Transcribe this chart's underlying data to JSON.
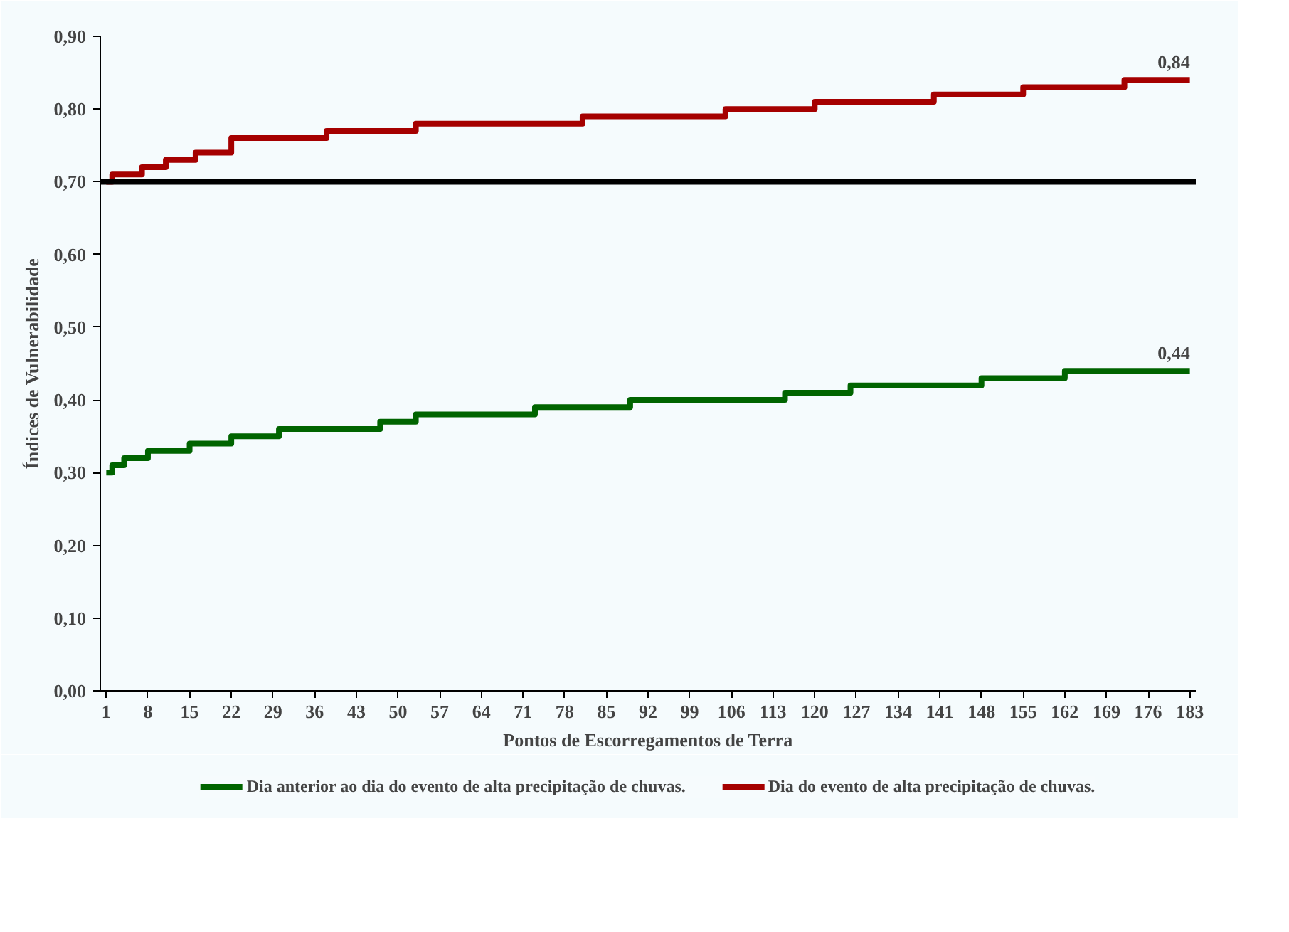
{
  "chart_data": {
    "type": "step",
    "xlabel": "Pontos de Escorregamentos de Terra",
    "ylabel": "Índices de Vulnerabilidade",
    "xlim": [
      0,
      184
    ],
    "xticks": [
      1,
      8,
      15,
      22,
      29,
      36,
      43,
      50,
      57,
      64,
      71,
      78,
      85,
      92,
      99,
      106,
      113,
      120,
      127,
      134,
      141,
      148,
      155,
      162,
      169,
      176,
      183
    ],
    "ylim": [
      0,
      0.9
    ],
    "yticks": [
      {
        "value": 0,
        "label": "0,00"
      },
      {
        "value": 0.1,
        "label": "0,10"
      },
      {
        "value": 0.2,
        "label": "0,20"
      },
      {
        "value": 0.3,
        "label": "0,30"
      },
      {
        "value": 0.4,
        "label": "0,40"
      },
      {
        "value": 0.5,
        "label": "0,50"
      },
      {
        "value": 0.6,
        "label": "0,60"
      },
      {
        "value": 0.7,
        "label": "0,70"
      },
      {
        "value": 0.8,
        "label": "0,80"
      },
      {
        "value": 0.9,
        "label": "0,90"
      }
    ],
    "series": [
      {
        "name": "Dia anterior ao dia do evento de alta precipitação de chuvas.",
        "color": "#006400",
        "x": [
          1,
          2,
          4,
          8,
          15,
          22,
          30,
          47,
          53,
          73,
          89,
          115,
          126,
          148,
          162,
          183
        ],
        "values": [
          0.3,
          0.31,
          0.32,
          0.33,
          0.34,
          0.35,
          0.36,
          0.37,
          0.38,
          0.39,
          0.4,
          0.41,
          0.42,
          0.43,
          0.44,
          0.44
        ]
      },
      {
        "name": "Dia do evento de alta precipitação de chuvas.",
        "color": "#a50000",
        "x": [
          1,
          2,
          7,
          11,
          16,
          22,
          38,
          53,
          81,
          105,
          120,
          140,
          155,
          172,
          183
        ],
        "values": [
          0.7,
          0.71,
          0.72,
          0.73,
          0.74,
          0.76,
          0.77,
          0.78,
          0.79,
          0.8,
          0.81,
          0.82,
          0.83,
          0.84,
          0.84
        ]
      }
    ],
    "ref_lines": [
      {
        "axis": "y",
        "value": 0.7,
        "color": "#000000"
      }
    ],
    "annotations": [
      {
        "text": "0,44",
        "x": 183,
        "y": 0.44
      },
      {
        "text": "0,84",
        "x": 183,
        "y": 0.84
      }
    ],
    "legend": "bottom",
    "grid": false,
    "marker": "none",
    "line_style": "solid"
  }
}
